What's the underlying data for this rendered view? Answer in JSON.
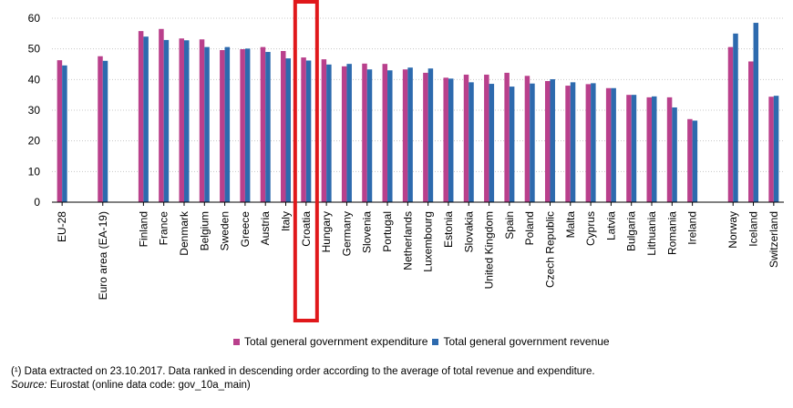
{
  "chart_data": {
    "type": "bar",
    "ylim": [
      0,
      60
    ],
    "yticks": [
      0,
      10,
      20,
      30,
      40,
      50,
      60
    ],
    "grid": true,
    "legend_position": "bottom",
    "colors": {
      "expenditure": "#b9408c",
      "revenue": "#2d6aae",
      "highlight": "#e0181b"
    },
    "highlight_category": "Croatia",
    "categories": [
      "EU-28",
      "Euro area (EA-19)",
      "Finland",
      "France",
      "Denmark",
      "Belgium",
      "Sweden",
      "Greece",
      "Austria",
      "Italy",
      "Croatia",
      "Hungary",
      "Germany",
      "Slovenia",
      "Portugal",
      "Netherlands",
      "Luxembourg",
      "Estonia",
      "Slovakia",
      "United Kingdom",
      "Spain",
      "Poland",
      "Czech Republic",
      "Malta",
      "Cyprus",
      "Latvia",
      "Bulgaria",
      "Lithuania",
      "Romania",
      "Ireland",
      "Norway",
      "Iceland",
      "Switzerland"
    ],
    "group_breaks_after": [
      "EU-28",
      "Euro area (EA-19)",
      "Ireland"
    ],
    "series": [
      {
        "name": "Total general government expenditure",
        "values": [
          46.3,
          47.6,
          55.8,
          56.5,
          53.4,
          53.1,
          49.6,
          49.9,
          50.6,
          49.3,
          47.2,
          46.6,
          44.3,
          45.2,
          45.1,
          43.3,
          42.2,
          40.6,
          41.6,
          41.6,
          42.2,
          41.2,
          39.5,
          38.0,
          38.5,
          37.2,
          35.0,
          34.2,
          34.2,
          27.1,
          50.6,
          45.9,
          34.4
        ]
      },
      {
        "name": "Total general government revenue",
        "values": [
          44.6,
          46.1,
          54.0,
          52.9,
          52.8,
          50.6,
          50.6,
          50.1,
          49.0,
          46.9,
          46.2,
          44.9,
          45.1,
          43.3,
          43.0,
          43.9,
          43.6,
          40.3,
          39.1,
          38.6,
          37.7,
          38.7,
          40.1,
          39.1,
          38.8,
          37.2,
          35.0,
          34.5,
          30.9,
          26.6,
          55.0,
          58.5,
          34.7
        ]
      }
    ]
  },
  "footnote": {
    "line1": "(¹) Data extracted on 23.10.2017. Data ranked in descending order according to the average of total revenue and expenditure.",
    "source_label": "Source:",
    "source_text": " Eurostat (online data code: gov_10a_main)"
  }
}
